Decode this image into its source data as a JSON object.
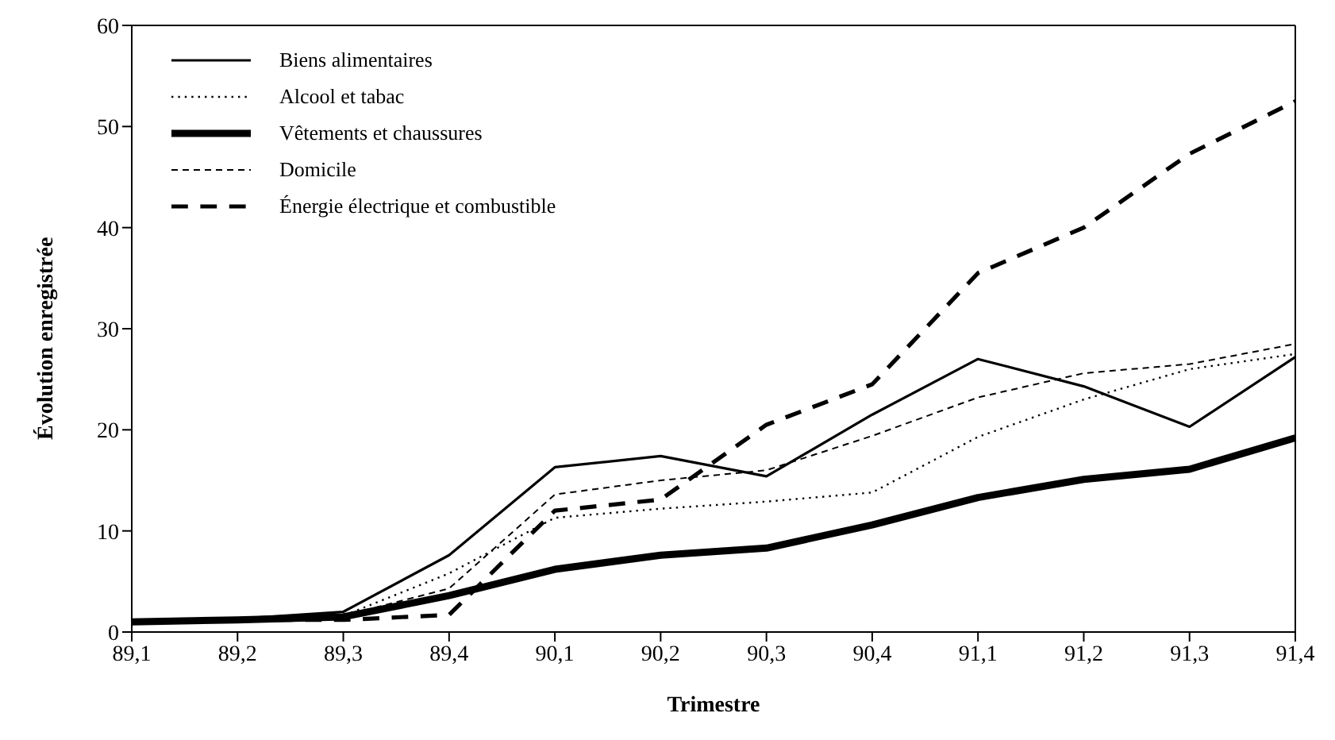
{
  "chart_data": {
    "type": "line",
    "xlabel": "Trimestre",
    "ylabel": "Évolution enregistrée",
    "categories": [
      "89,1",
      "89,2",
      "89,3",
      "89,4",
      "90,1",
      "90,2",
      "90,3",
      "90,4",
      "91,1",
      "91,2",
      "91,3",
      "91,4"
    ],
    "series": [
      {
        "name": "Biens alimentaires",
        "color": "#000000",
        "line_style": "solid",
        "values": [
          1,
          1.3,
          2,
          7.6,
          16.3,
          17.4,
          15.4,
          21.5,
          27,
          24.3,
          20.3,
          27.2
        ]
      },
      {
        "name": "Alcool et tabac",
        "color": "#000000",
        "line_style": "dotted",
        "values": [
          1,
          1.2,
          1.6,
          5.8,
          11.3,
          12.2,
          12.9,
          13.8,
          19.3,
          23,
          26,
          27.5
        ]
      },
      {
        "name": "Vêtements et chaussures",
        "color": "#000000",
        "line_style": "solid",
        "values": [
          1,
          1.2,
          1.5,
          3.6,
          6.2,
          7.6,
          8.3,
          10.6,
          13.3,
          15.1,
          16.1,
          19.2
        ]
      },
      {
        "name": "Domicile",
        "color": "#000000",
        "line_style": "dashed",
        "values": [
          1,
          1.2,
          1.6,
          4.3,
          13.6,
          15,
          16,
          19.4,
          23.2,
          25.6,
          26.5,
          28.5
        ]
      },
      {
        "name": "Énergie électrique et combustible",
        "color": "#000000",
        "line_style": "dashed",
        "values": [
          1,
          1.2,
          1.2,
          1.7,
          12,
          13.1,
          20.5,
          24.5,
          35.5,
          40,
          47.3,
          52.5
        ]
      }
    ],
    "ylim": [
      0,
      60
    ],
    "yticks": [
      0,
      10,
      20,
      30,
      40,
      50,
      60
    ],
    "grid": false,
    "legend": "top left",
    "marker": "none"
  }
}
